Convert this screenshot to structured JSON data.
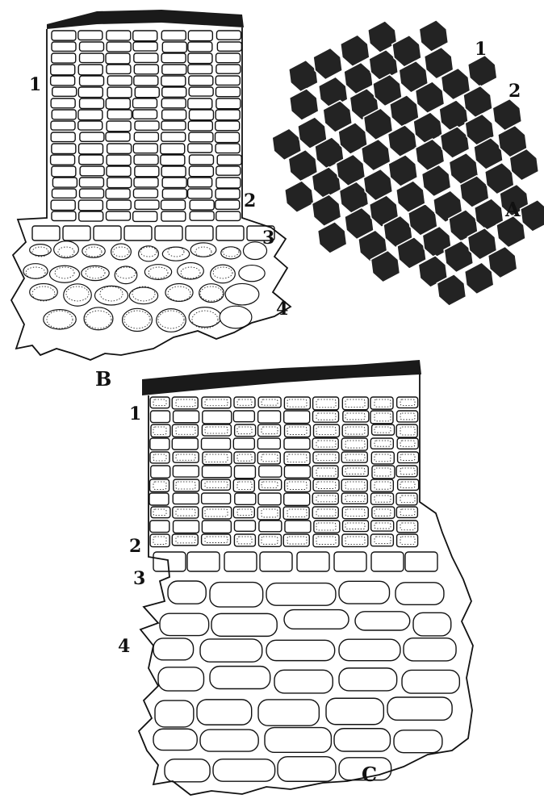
{
  "figure": {
    "panels": [
      {
        "id": "A",
        "label": "A",
        "layers": [
          "1",
          "2"
        ]
      },
      {
        "id": "B",
        "label": "B",
        "layers": [
          "1",
          "2",
          "3",
          "4"
        ]
      },
      {
        "id": "C",
        "label": "C",
        "layers": [
          "1",
          "2",
          "3",
          "4"
        ]
      }
    ]
  }
}
